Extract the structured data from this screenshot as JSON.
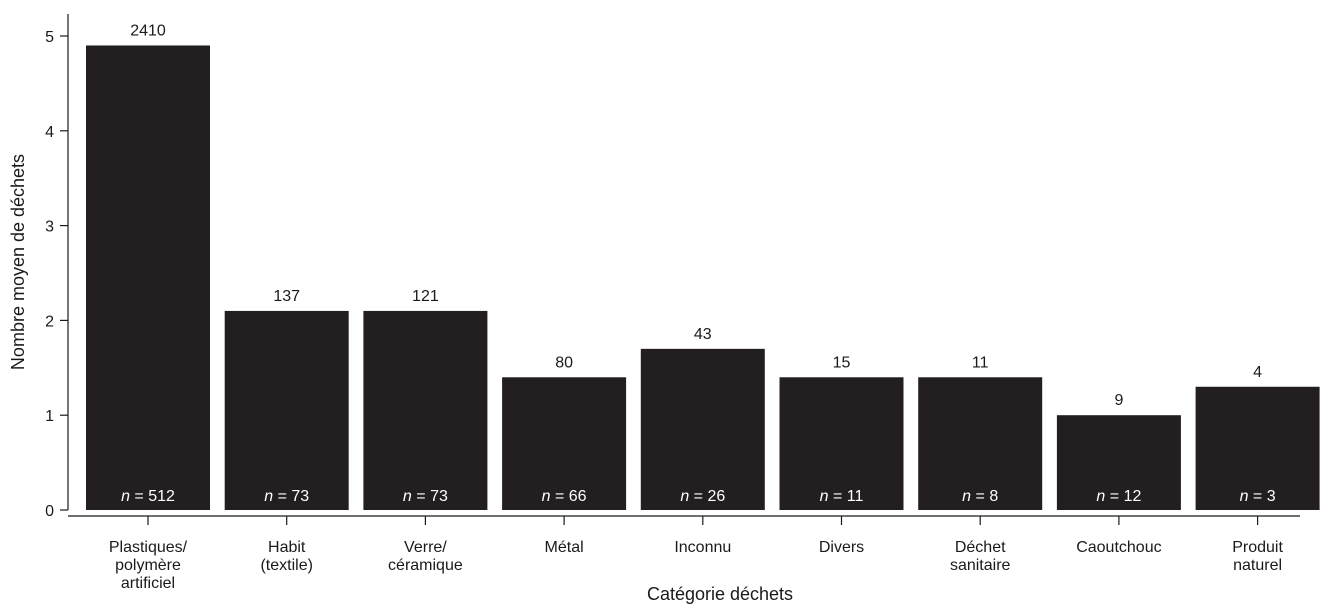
{
  "chart_data": {
    "type": "bar",
    "xlabel": "Catégorie déchets",
    "ylabel": "Nombre moyen de déchets",
    "ylim": [
      0,
      5
    ],
    "yticks": [
      "0",
      "1",
      "2",
      "3",
      "4",
      "5"
    ],
    "grid": false,
    "bar_color": "#231f20",
    "categories": [
      [
        "Plastiques/",
        "polymère",
        "artificiel"
      ],
      [
        "Habit",
        "(textile)"
      ],
      [
        "Verre/",
        "céramique"
      ],
      [
        "Métal"
      ],
      [
        "Inconnu"
      ],
      [
        "Divers"
      ],
      [
        "Déchet",
        "sanitaire"
      ],
      [
        "Caoutchouc"
      ],
      [
        "Produit",
        "naturel"
      ]
    ],
    "values": [
      4.9,
      2.1,
      2.1,
      1.4,
      1.7,
      1.4,
      1.4,
      1.0,
      1.3
    ],
    "top_labels": [
      "2410",
      "137",
      "121",
      "80",
      "43",
      "15",
      "11",
      "9",
      "4"
    ],
    "n_labels": [
      "512",
      "73",
      "73",
      "66",
      "26",
      "11",
      "8",
      "12",
      "3"
    ],
    "n_prefix": "n",
    "n_equals": " = "
  }
}
